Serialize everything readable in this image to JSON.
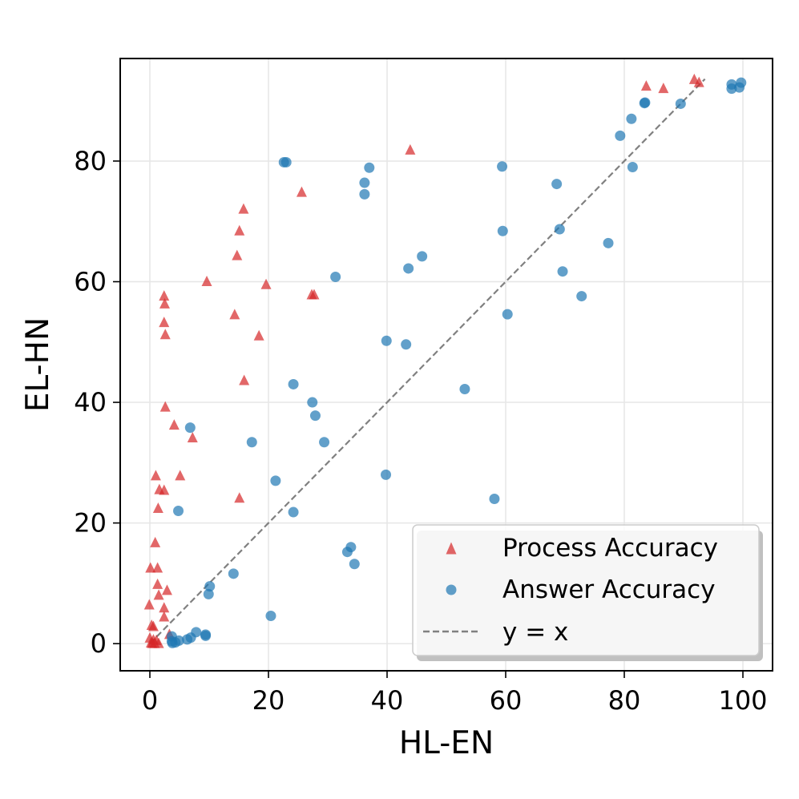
{
  "chart_data": {
    "type": "scatter",
    "xlabel": "HL-EN",
    "ylabel": "EL-HN",
    "xlim": [
      -5,
      105
    ],
    "ylim": [
      -4.5,
      97
    ],
    "xticks": [
      0,
      20,
      40,
      60,
      80,
      100
    ],
    "yticks": [
      0,
      20,
      40,
      60,
      80
    ],
    "xtick_labels": [
      "0",
      "20",
      "40",
      "60",
      "80",
      "100"
    ],
    "ytick_labels": [
      "0",
      "20",
      "40",
      "60",
      "80"
    ],
    "grid": true,
    "legend_position": "lower-right",
    "series": [
      {
        "name": "Process Accuracy",
        "marker": "triangle",
        "color": "#d62728",
        "points": [
          [
            91.8,
            93.5
          ],
          [
            92.6,
            93.0
          ],
          [
            83.7,
            92.4
          ],
          [
            86.6,
            92.0
          ],
          [
            43.9,
            81.8
          ],
          [
            25.6,
            74.8
          ],
          [
            15.8,
            72.0
          ],
          [
            15.1,
            68.4
          ],
          [
            14.7,
            64.3
          ],
          [
            9.6,
            60.0
          ],
          [
            19.6,
            59.5
          ],
          [
            27.3,
            57.8
          ],
          [
            27.7,
            57.8
          ],
          [
            2.4,
            57.6
          ],
          [
            2.5,
            56.3
          ],
          [
            14.3,
            54.5
          ],
          [
            2.4,
            53.2
          ],
          [
            2.6,
            51.2
          ],
          [
            18.4,
            51.0
          ],
          [
            15.9,
            43.6
          ],
          [
            2.6,
            39.2
          ],
          [
            4.1,
            36.2
          ],
          [
            7.2,
            34.1
          ],
          [
            1.0,
            27.8
          ],
          [
            5.1,
            27.8
          ],
          [
            1.6,
            25.5
          ],
          [
            2.4,
            25.4
          ],
          [
            15.1,
            24.1
          ],
          [
            1.4,
            22.4
          ],
          [
            0.9,
            16.7
          ],
          [
            0.1,
            12.5
          ],
          [
            1.3,
            12.5
          ],
          [
            1.3,
            9.8
          ],
          [
            2.9,
            8.8
          ],
          [
            1.5,
            8.0
          ],
          [
            -0.1,
            6.4
          ],
          [
            2.4,
            5.9
          ],
          [
            2.4,
            4.4
          ],
          [
            0.3,
            3.0
          ],
          [
            0.6,
            2.8
          ],
          [
            3.3,
            1.5
          ],
          [
            0.0,
            0.9
          ],
          [
            0.6,
            0.6
          ],
          [
            1.1,
            0.5
          ],
          [
            0.2,
            0.1
          ],
          [
            0.4,
            0.0
          ],
          [
            0.8,
            0.0
          ],
          [
            1.5,
            0.0
          ]
        ]
      },
      {
        "name": "Answer Accuracy",
        "marker": "circle",
        "color": "#1f77b4",
        "points": [
          [
            99.7,
            93.0
          ],
          [
            98.1,
            92.7
          ],
          [
            99.4,
            92.2
          ],
          [
            98.1,
            92.0
          ],
          [
            83.5,
            89.7
          ],
          [
            83.4,
            89.6
          ],
          [
            89.5,
            89.5
          ],
          [
            81.2,
            87.0
          ],
          [
            79.3,
            84.2
          ],
          [
            22.6,
            79.8
          ],
          [
            23.0,
            79.8
          ],
          [
            59.4,
            79.1
          ],
          [
            81.4,
            79.0
          ],
          [
            37.0,
            78.9
          ],
          [
            36.2,
            76.4
          ],
          [
            68.6,
            76.2
          ],
          [
            36.2,
            74.5
          ],
          [
            69.1,
            68.7
          ],
          [
            59.5,
            68.4
          ],
          [
            77.3,
            66.4
          ],
          [
            45.9,
            64.2
          ],
          [
            43.6,
            62.2
          ],
          [
            69.6,
            61.7
          ],
          [
            31.3,
            60.8
          ],
          [
            72.8,
            57.6
          ],
          [
            60.3,
            54.6
          ],
          [
            39.9,
            50.2
          ],
          [
            43.2,
            49.6
          ],
          [
            24.2,
            43.0
          ],
          [
            53.1,
            42.2
          ],
          [
            27.4,
            40.0
          ],
          [
            27.9,
            37.8
          ],
          [
            6.8,
            35.8
          ],
          [
            17.2,
            33.4
          ],
          [
            29.4,
            33.4
          ],
          [
            39.8,
            28.0
          ],
          [
            21.2,
            27.0
          ],
          [
            58.1,
            24.0
          ],
          [
            4.8,
            22.0
          ],
          [
            24.2,
            21.8
          ],
          [
            33.9,
            16.0
          ],
          [
            33.3,
            15.2
          ],
          [
            34.5,
            13.2
          ],
          [
            14.1,
            11.6
          ],
          [
            10.1,
            9.5
          ],
          [
            9.9,
            8.2
          ],
          [
            20.4,
            4.6
          ],
          [
            7.8,
            1.9
          ],
          [
            9.4,
            1.5
          ],
          [
            9.4,
            1.3
          ],
          [
            3.7,
            1.2
          ],
          [
            6.9,
            1.0
          ],
          [
            6.3,
            0.7
          ],
          [
            4.9,
            0.5
          ],
          [
            3.7,
            0.4
          ],
          [
            4.3,
            0.2
          ],
          [
            3.8,
            0.1
          ]
        ]
      },
      {
        "name": "y = x",
        "style": "dashed",
        "color": "#808080",
        "points": [
          [
            0,
            0
          ],
          [
            93.6,
            93.6
          ]
        ]
      }
    ]
  }
}
